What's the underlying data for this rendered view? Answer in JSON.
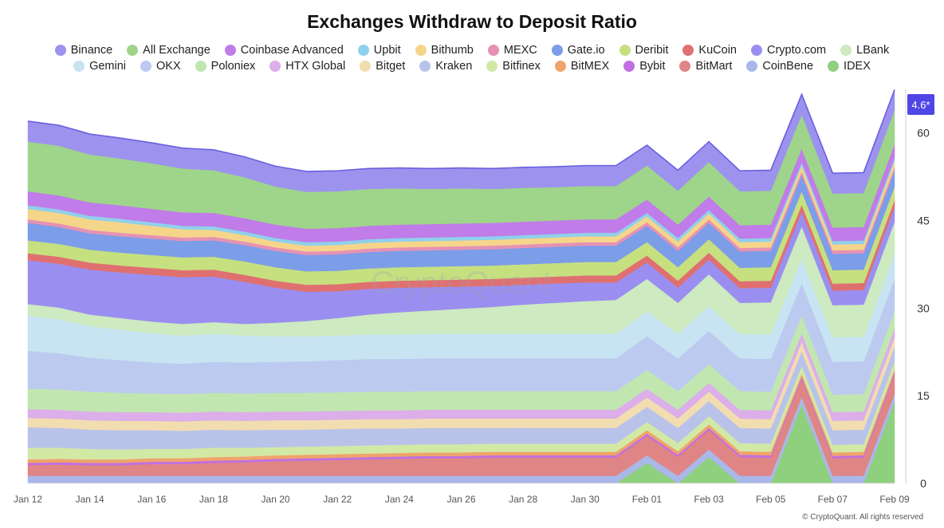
{
  "chart_data": {
    "type": "area",
    "stacked": true,
    "title": "Exchanges Withdraw to Deposit Ratio",
    "watermark": "CryptoQuant",
    "copyright": "© CryptoQuant. All rights reserved",
    "last_value_label": "4.6*",
    "ylim": [
      0,
      65
    ],
    "yticks": [
      0,
      15,
      30,
      45,
      60
    ],
    "x_ticks": [
      "Jan 12",
      "Jan 14",
      "Jan 16",
      "Jan 18",
      "Jan 20",
      "Jan 22",
      "Jan 24",
      "Jan 26",
      "Jan 28",
      "Jan 30",
      "Feb 01",
      "Feb 03",
      "Feb 05",
      "Feb 07",
      "Feb 09"
    ],
    "x": [
      "Jan 12",
      "Jan 13",
      "Jan 14",
      "Jan 15",
      "Jan 16",
      "Jan 17",
      "Jan 18",
      "Jan 19",
      "Jan 20",
      "Jan 21",
      "Jan 22",
      "Jan 23",
      "Jan 24",
      "Jan 25",
      "Jan 26",
      "Jan 27",
      "Jan 28",
      "Jan 29",
      "Jan 30",
      "Jan 31",
      "Feb 01",
      "Feb 02",
      "Feb 03",
      "Feb 04",
      "Feb 05",
      "Feb 06",
      "Feb 07",
      "Feb 08",
      "Feb 09"
    ],
    "legend_rows": [
      [
        "Binance",
        "All Exchange",
        "Coinbase Advanced",
        "Upbit",
        "Bithumb",
        "MEXC",
        "Gate.io",
        "Deribit",
        "KuCoin",
        "Crypto.com",
        "LBank"
      ],
      [
        "Gemini",
        "OKX",
        "Poloniex",
        "HTX Global",
        "Bitget",
        "Kraken",
        "Bitfinex",
        "BitMEX",
        "Bybit",
        "BitMart",
        "CoinBene",
        "IDEX"
      ]
    ],
    "series": [
      {
        "name": "IDEX",
        "color": "#8fd07e",
        "values": [
          0,
          0,
          0,
          0,
          0,
          0,
          0,
          0,
          0,
          0,
          0,
          0,
          0,
          0,
          0,
          0,
          0,
          0,
          0,
          0,
          3.5,
          0,
          4.5,
          0,
          0,
          13.5,
          0,
          0,
          14
        ]
      },
      {
        "name": "CoinBene",
        "color": "#a9b8e8",
        "values": [
          1.3,
          1.3,
          1.3,
          1.3,
          1.3,
          1.3,
          1.3,
          1.3,
          1.3,
          1.3,
          1.3,
          1.3,
          1.3,
          1.3,
          1.3,
          1.3,
          1.3,
          1.3,
          1.3,
          1.3,
          1.3,
          1.3,
          1.3,
          1.3,
          1.3,
          1.3,
          1.3,
          1.3,
          1.3
        ]
      },
      {
        "name": "BitMart",
        "color": "#e08585",
        "values": [
          1.8,
          1.9,
          1.8,
          1.8,
          2,
          2,
          2.2,
          2.3,
          2.5,
          2.6,
          2.7,
          2.8,
          2.9,
          3,
          3,
          3.1,
          3.1,
          3.1,
          3.1,
          3.1,
          3.3,
          3.2,
          3.3,
          3.2,
          3.1,
          3,
          3,
          3.1,
          3.3
        ]
      },
      {
        "name": "Bybit",
        "color": "#c070e0",
        "values": [
          0.4,
          0.4,
          0.4,
          0.4,
          0.4,
          0.4,
          0.4,
          0.4,
          0.4,
          0.4,
          0.4,
          0.4,
          0.4,
          0.4,
          0.4,
          0.4,
          0.4,
          0.4,
          0.4,
          0.4,
          0.4,
          0.4,
          0.4,
          0.4,
          0.4,
          0.4,
          0.4,
          0.4,
          0.4
        ]
      },
      {
        "name": "BitMEX",
        "color": "#f0a36a",
        "values": [
          0.6,
          0.6,
          0.6,
          0.6,
          0.6,
          0.6,
          0.6,
          0.6,
          0.6,
          0.6,
          0.6,
          0.6,
          0.6,
          0.6,
          0.6,
          0.6,
          0.6,
          0.6,
          0.6,
          0.6,
          0.6,
          0.6,
          0.6,
          0.6,
          0.6,
          0.6,
          0.6,
          0.6,
          0.6
        ]
      },
      {
        "name": "Bitfinex",
        "color": "#d2e9a6",
        "values": [
          2,
          1.9,
          1.8,
          1.7,
          1.6,
          1.6,
          1.6,
          1.5,
          1.4,
          1.4,
          1.4,
          1.4,
          1.4,
          1.4,
          1.4,
          1.4,
          1.4,
          1.4,
          1.4,
          1.4,
          1.4,
          1.4,
          1.4,
          1.4,
          1.4,
          1.3,
          1.3,
          1.3,
          1.3
        ]
      },
      {
        "name": "Kraken",
        "color": "#b9c3ea",
        "values": [
          3.5,
          3.4,
          3.3,
          3.3,
          3.2,
          3.1,
          3.1,
          3,
          3,
          2.9,
          2.9,
          2.9,
          2.8,
          2.8,
          2.8,
          2.7,
          2.7,
          2.7,
          2.7,
          2.7,
          2.6,
          2.6,
          2.6,
          2.6,
          2.6,
          2.5,
          2.5,
          2.5,
          2.5
        ]
      },
      {
        "name": "Bitget",
        "color": "#f2ddb0",
        "values": [
          1.6,
          1.6,
          1.6,
          1.6,
          1.6,
          1.6,
          1.6,
          1.6,
          1.6,
          1.6,
          1.6,
          1.6,
          1.6,
          1.6,
          1.6,
          1.6,
          1.6,
          1.6,
          1.6,
          1.6,
          1.6,
          1.6,
          1.6,
          1.6,
          1.6,
          1.6,
          1.6,
          1.6,
          1.6
        ]
      },
      {
        "name": "HTX Global",
        "color": "#dcaeea",
        "values": [
          1.5,
          1.5,
          1.5,
          1.5,
          1.5,
          1.5,
          1.5,
          1.5,
          1.5,
          1.5,
          1.5,
          1.5,
          1.5,
          1.5,
          1.5,
          1.5,
          1.5,
          1.5,
          1.5,
          1.5,
          1.5,
          1.5,
          1.5,
          1.5,
          1.5,
          1.5,
          1.5,
          1.5,
          1.5
        ]
      },
      {
        "name": "Poloniex",
        "color": "#c2e6b0",
        "values": [
          3.5,
          3.5,
          3.4,
          3.3,
          3.2,
          3.2,
          3.2,
          3.2,
          3.2,
          3.2,
          3.2,
          3.2,
          3.2,
          3.2,
          3.2,
          3.2,
          3.2,
          3.2,
          3.2,
          3.2,
          3.2,
          3.2,
          3.2,
          3.2,
          3.2,
          3,
          3,
          3,
          3
        ]
      },
      {
        "name": "OKX",
        "color": "#bccaf0",
        "values": [
          6.5,
          6.2,
          5.8,
          5.6,
          5.3,
          5.2,
          5.3,
          5.3,
          5.3,
          5.4,
          5.5,
          5.6,
          5.6,
          5.6,
          5.6,
          5.6,
          5.6,
          5.6,
          5.6,
          5.6,
          5.8,
          5.6,
          5.7,
          5.6,
          5.6,
          5.6,
          5.6,
          5.6,
          5.6
        ]
      },
      {
        "name": "Gemini",
        "color": "#c8e4f2",
        "values": [
          6,
          5.8,
          5.4,
          5.2,
          5,
          4.8,
          4.8,
          4.6,
          4.4,
          4.3,
          4.2,
          4.2,
          4.2,
          4.2,
          4.2,
          4.2,
          4.2,
          4.2,
          4.2,
          4.2,
          4.3,
          4.2,
          4.2,
          4.2,
          4.2,
          4.2,
          4.2,
          4.2,
          4.2
        ]
      },
      {
        "name": "LBank",
        "color": "#cdeac0",
        "values": [
          2,
          2,
          2,
          2,
          2,
          2,
          2,
          2,
          2.3,
          2.6,
          3,
          3.4,
          3.8,
          4,
          4.3,
          4.6,
          5,
          5.3,
          5.6,
          5.8,
          5.5,
          5.3,
          5.5,
          5.3,
          5.5,
          5.5,
          5.5,
          5.5,
          5.5
        ]
      },
      {
        "name": "Crypto.com",
        "color": "#9a8ff0",
        "values": [
          7.5,
          7.5,
          7.7,
          7.8,
          8,
          8,
          7.8,
          7.2,
          6,
          5,
          4.6,
          4.4,
          4.2,
          4,
          3.8,
          3.6,
          3.4,
          3.3,
          3.2,
          3,
          2.8,
          2.6,
          2.5,
          2.5,
          2.5,
          2.5,
          2.5,
          2.5,
          2.5
        ]
      },
      {
        "name": "KuCoin",
        "color": "#e07070",
        "values": [
          1.2,
          1.2,
          1.2,
          1.2,
          1.2,
          1.2,
          1.2,
          1.2,
          1.2,
          1.2,
          1.2,
          1.2,
          1.2,
          1.2,
          1.2,
          1.2,
          1.2,
          1.2,
          1.2,
          1.2,
          1.2,
          1.2,
          1.2,
          1.2,
          1.2,
          1.2,
          1.2,
          1.2,
          1.2
        ]
      },
      {
        "name": "Deribit",
        "color": "#c6e080",
        "values": [
          2.2,
          2.2,
          2.2,
          2.2,
          2.2,
          2.2,
          2.2,
          2.3,
          2.3,
          2.3,
          2.3,
          2.3,
          2.3,
          2.3,
          2.3,
          2.3,
          2.3,
          2.3,
          2.3,
          2.3,
          2.3,
          2.3,
          2.3,
          2.3,
          2.3,
          2.3,
          2.3,
          2.3,
          2.3
        ]
      },
      {
        "name": "Gate.io",
        "color": "#7c9de8",
        "values": [
          3,
          2.9,
          2.8,
          2.8,
          2.8,
          2.8,
          2.8,
          2.8,
          2.8,
          2.8,
          2.8,
          2.8,
          2.8,
          2.8,
          2.8,
          2.8,
          2.8,
          2.8,
          2.8,
          2.8,
          2.8,
          2.8,
          2.8,
          2.8,
          2.8,
          2.8,
          2.8,
          2.8,
          2.8
        ]
      },
      {
        "name": "MEXC",
        "color": "#e592b4",
        "values": [
          0.6,
          0.6,
          0.6,
          0.6,
          0.6,
          0.6,
          0.6,
          0.6,
          0.6,
          0.6,
          0.6,
          0.6,
          0.6,
          0.6,
          0.6,
          0.6,
          0.6,
          0.6,
          0.6,
          0.6,
          0.6,
          0.6,
          0.6,
          0.6,
          0.6,
          0.6,
          0.6,
          0.6,
          0.6
        ]
      },
      {
        "name": "Bithumb",
        "color": "#f5d58a",
        "values": [
          1.8,
          1.8,
          1.8,
          1.8,
          1.6,
          1.4,
          1.2,
          1.1,
          1,
          1,
          1,
          1,
          1,
          1,
          1,
          1,
          1,
          1,
          1,
          1,
          1,
          1,
          1,
          1,
          1,
          1,
          1,
          1,
          1
        ]
      },
      {
        "name": "Upbit",
        "color": "#8fd0ec",
        "values": [
          0.6,
          0.6,
          0.6,
          0.6,
          0.6,
          0.6,
          0.6,
          0.6,
          0.6,
          0.6,
          0.6,
          0.6,
          0.6,
          0.6,
          0.6,
          0.6,
          0.6,
          0.6,
          0.6,
          0.6,
          0.6,
          0.6,
          0.6,
          0.6,
          0.6,
          0.6,
          0.6,
          0.6,
          0.6
        ]
      },
      {
        "name": "Coinbase Advanced",
        "color": "#c07ce8",
        "values": [
          2.4,
          2.4,
          2.3,
          2.3,
          2.3,
          2.3,
          2.3,
          2.3,
          2.3,
          2.3,
          2.3,
          2.3,
          2.3,
          2.3,
          2.3,
          2.3,
          2.3,
          2.3,
          2.3,
          2.3,
          2.3,
          2.3,
          2.3,
          2.3,
          2.3,
          2.3,
          2.3,
          2.3,
          2.3
        ]
      },
      {
        "name": "All Exchange",
        "color": "#9ed58a",
        "values": [
          8.5,
          8.5,
          8.2,
          8,
          7.8,
          7.5,
          7.3,
          7,
          6.5,
          6.3,
          6.3,
          6.3,
          6.2,
          6,
          6,
          5.8,
          5.8,
          5.7,
          5.7,
          5.7,
          5.8,
          5.8,
          5.9,
          5.8,
          5.8,
          5.8,
          5.8,
          5.8,
          5.8
        ]
      },
      {
        "name": "Binance",
        "color": "#9d93ee",
        "values": [
          3.5,
          3.5,
          3.5,
          3.5,
          3.5,
          3.5,
          3.5,
          3.5,
          3.5,
          3.5,
          3.5,
          3.5,
          3.5,
          3.5,
          3.5,
          3.5,
          3.5,
          3.5,
          3.5,
          3.5,
          3.5,
          3.5,
          3.5,
          3.5,
          3.5,
          3.5,
          3.5,
          3.5,
          3.5
        ]
      }
    ]
  }
}
